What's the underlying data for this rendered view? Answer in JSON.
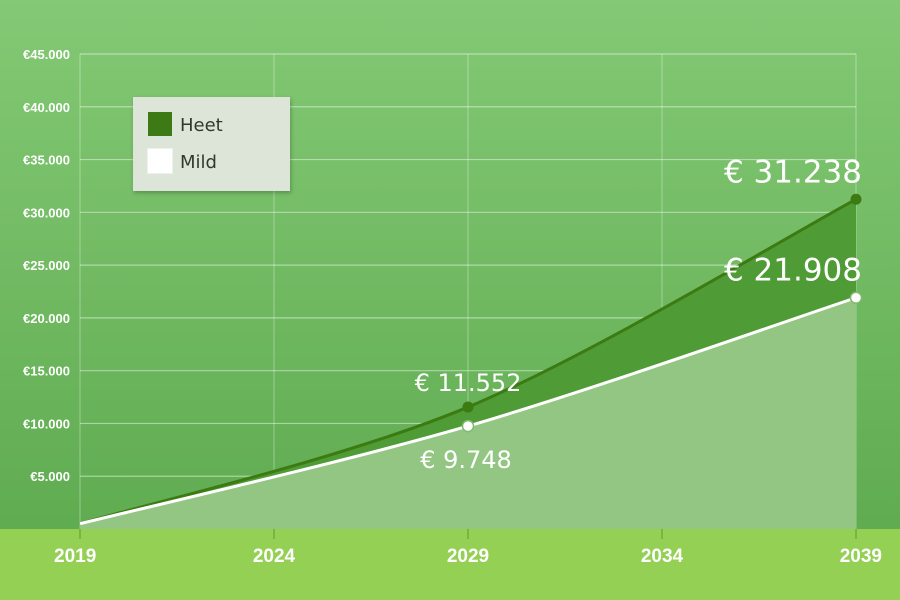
{
  "chart_data": {
    "type": "area",
    "x": [
      2019,
      2029,
      2039
    ],
    "x_ticks": [
      "2019",
      "2024",
      "2029",
      "2034",
      "2039"
    ],
    "y_ticks": [
      "€5.000",
      "€10.000",
      "€15.000",
      "€20.000",
      "€25.000",
      "€30.000",
      "€35.000",
      "€40.000",
      "€45.000"
    ],
    "ylim": [
      0,
      45000
    ],
    "xlim": [
      2019,
      2039
    ],
    "grid": true,
    "legend_position": "top-left",
    "series": [
      {
        "name": "Heet",
        "color": "#3c7a12",
        "values": [
          500,
          11552,
          31238
        ],
        "labels": [
          "",
          "€ 11.552",
          "€ 31.238"
        ]
      },
      {
        "name": "Mild",
        "color": "#ffffff",
        "values": [
          500,
          9748,
          21908
        ],
        "labels": [
          "",
          "€ 9.748",
          "€ 21.908"
        ]
      }
    ]
  },
  "colors": {
    "background_top": "#84c975",
    "background_bottom": "#5ba84c",
    "axis_band": "#93d053",
    "heet_fill": "#4f9c36",
    "mild_fill": "#94c683"
  }
}
